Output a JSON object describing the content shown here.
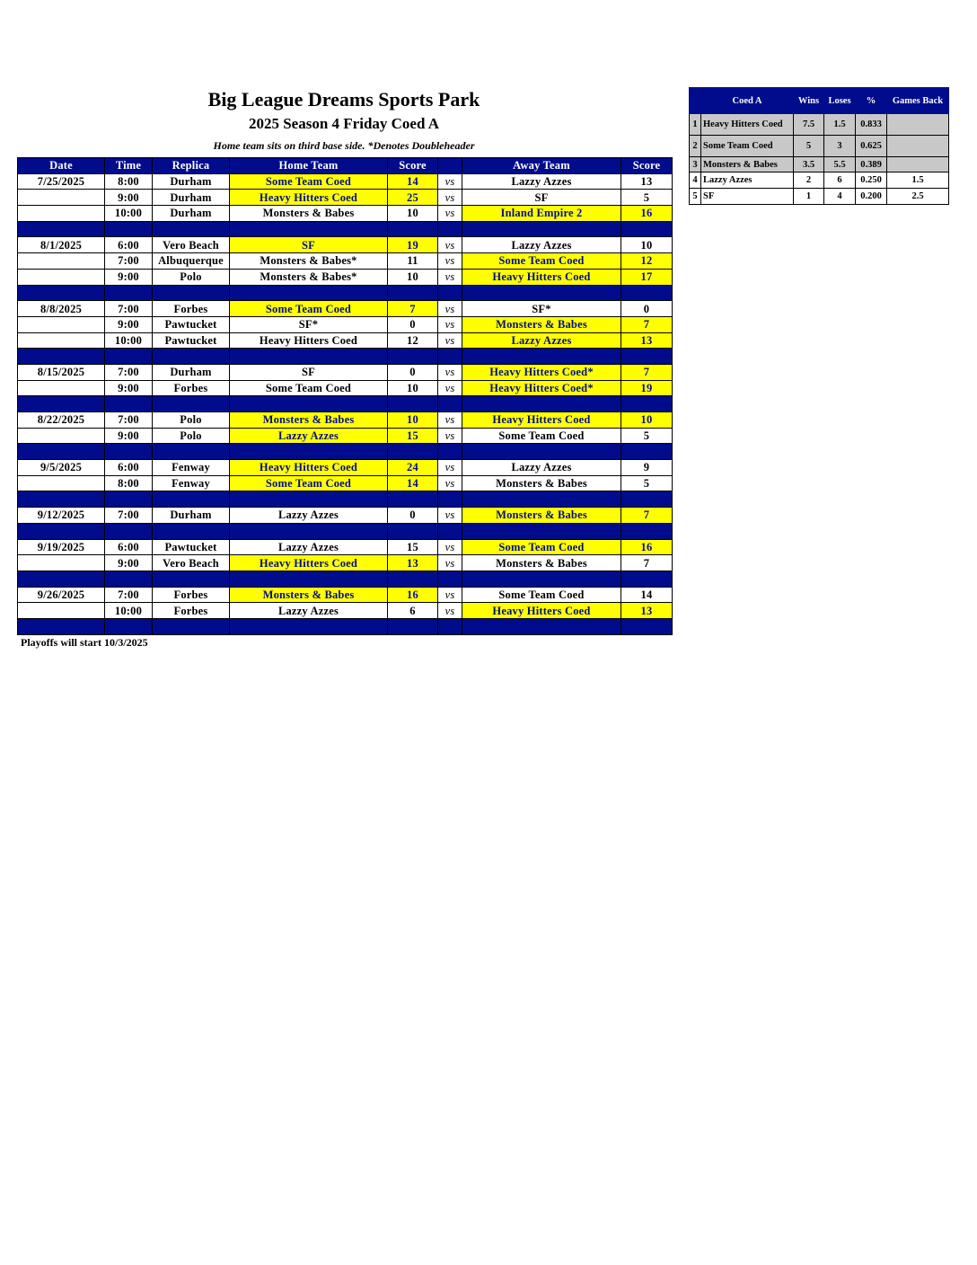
{
  "title": "Big League Dreams Sports Park",
  "subtitle": "2025 Season 4 Friday Coed A",
  "note": "Home team sits on third base side.  *Denotes Doubleheader",
  "footer": "Playoffs will start 10/3/2025",
  "colors": {
    "header": "#000c8c",
    "winner": "#ffff00",
    "top3": "#c8c8c8"
  },
  "schedule": {
    "headers": [
      "Date",
      "Time",
      "Replica",
      "Home Team",
      "Score",
      "",
      "Away Team",
      "Score"
    ],
    "rows": [
      {
        "date": "7/25/2025",
        "time": "8:00",
        "field": "Durham",
        "home": "Some Team Coed",
        "hs": "14",
        "vs": "vs",
        "away": "Lazzy Azzes",
        "as": "13",
        "winner": "home"
      },
      {
        "date": "",
        "time": "9:00",
        "field": "Durham",
        "home": "Heavy Hitters Coed",
        "hs": "25",
        "vs": "vs",
        "away": "SF",
        "as": "5",
        "winner": "home"
      },
      {
        "date": "",
        "time": "10:00",
        "field": "Durham",
        "home": "Monsters & Babes",
        "hs": "10",
        "vs": "vs",
        "away": "Inland Empire 2",
        "as": "16",
        "winner": "away"
      },
      {
        "spacer": true
      },
      {
        "date": "8/1/2025",
        "time": "6:00",
        "field": "Vero Beach",
        "home": "SF",
        "hs": "19",
        "vs": "vs",
        "away": "Lazzy Azzes",
        "as": "10",
        "winner": "home"
      },
      {
        "date": "",
        "time": "7:00",
        "field": "Albuquerque",
        "home": "Monsters & Babes*",
        "hs": "11",
        "vs": "vs",
        "away": "Some Team Coed",
        "as": "12",
        "winner": "away"
      },
      {
        "date": "",
        "time": "9:00",
        "field": "Polo",
        "home": "Monsters & Babes*",
        "hs": "10",
        "vs": "vs",
        "away": "Heavy Hitters Coed",
        "as": "17",
        "winner": "away"
      },
      {
        "spacer": true
      },
      {
        "date": "8/8/2025",
        "time": "7:00",
        "field": "Forbes",
        "home": "Some Team Coed",
        "hs": "7",
        "vs": "vs",
        "away": "SF*",
        "as": "0",
        "winner": "home"
      },
      {
        "date": "",
        "time": "9:00",
        "field": "Pawtucket",
        "home": "SF*",
        "hs": "0",
        "vs": "vs",
        "away": "Monsters & Babes",
        "as": "7",
        "winner": "away"
      },
      {
        "date": "",
        "time": "10:00",
        "field": "Pawtucket",
        "home": "Heavy Hitters Coed",
        "hs": "12",
        "vs": "vs",
        "away": "Lazzy Azzes",
        "as": "13",
        "winner": "away"
      },
      {
        "spacer": true
      },
      {
        "date": "8/15/2025",
        "time": "7:00",
        "field": "Durham",
        "home": "SF",
        "hs": "0",
        "vs": "vs",
        "away": "Heavy Hitters Coed*",
        "as": "7",
        "winner": "away"
      },
      {
        "date": "",
        "time": "9:00",
        "field": "Forbes",
        "home": "Some Team Coed",
        "hs": "10",
        "vs": "vs",
        "away": "Heavy Hitters Coed*",
        "as": "19",
        "winner": "away"
      },
      {
        "spacer": true
      },
      {
        "date": "8/22/2025",
        "time": "7:00",
        "field": "Polo",
        "home": "Monsters & Babes",
        "hs": "10",
        "vs": "vs",
        "away": "Heavy Hitters Coed",
        "as": "10",
        "winner": "both"
      },
      {
        "date": "",
        "time": "9:00",
        "field": "Polo",
        "home": "Lazzy Azzes",
        "hs": "15",
        "vs": "vs",
        "away": "Some Team Coed",
        "as": "5",
        "winner": "home"
      },
      {
        "spacer": true
      },
      {
        "date": "9/5/2025",
        "time": "6:00",
        "field": "Fenway",
        "home": "Heavy Hitters Coed",
        "hs": "24",
        "vs": "vs",
        "away": "Lazzy Azzes",
        "as": "9",
        "winner": "home"
      },
      {
        "date": "",
        "time": "8:00",
        "field": "Fenway",
        "home": "Some Team Coed",
        "hs": "14",
        "vs": "vs",
        "away": "Monsters & Babes",
        "as": "5",
        "winner": "home"
      },
      {
        "spacer": true
      },
      {
        "date": "9/12/2025",
        "time": "7:00",
        "field": "Durham",
        "home": "Lazzy Azzes",
        "hs": "0",
        "vs": "vs",
        "away": "Monsters & Babes",
        "as": "7",
        "winner": "away"
      },
      {
        "spacer": true
      },
      {
        "date": "9/19/2025",
        "time": "6:00",
        "field": "Pawtucket",
        "home": "Lazzy Azzes",
        "hs": "15",
        "vs": "vs",
        "away": "Some Team Coed",
        "as": "16",
        "winner": "away"
      },
      {
        "date": "",
        "time": "9:00",
        "field": "Vero Beach",
        "home": "Heavy Hitters Coed",
        "hs": "13",
        "vs": "vs",
        "away": "Monsters & Babes",
        "as": "7",
        "winner": "home"
      },
      {
        "spacer": true
      },
      {
        "date": "9/26/2025",
        "time": "7:00",
        "field": "Forbes",
        "home": "Monsters & Babes",
        "hs": "16",
        "vs": "vs",
        "away": "Some Team Coed",
        "as": "14",
        "winner": "home"
      },
      {
        "date": "",
        "time": "10:00",
        "field": "Forbes",
        "home": "Lazzy Azzes",
        "hs": "6",
        "vs": "vs",
        "away": "Heavy Hitters Coed",
        "as": "13",
        "winner": "away"
      },
      {
        "spacer": true
      }
    ]
  },
  "standings": {
    "headers": [
      "",
      "Coed A",
      "Wins",
      "Loses",
      "%",
      "Games Back"
    ],
    "rows": [
      {
        "rank": "1",
        "team": "Heavy Hitters Coed",
        "wins": "7.5",
        "loses": "1.5",
        "pct": "0.833",
        "gb": "",
        "top": true
      },
      {
        "rank": "2",
        "team": "Some Team Coed",
        "wins": "5",
        "loses": "3",
        "pct": "0.625",
        "gb": "",
        "top": true
      },
      {
        "rank": "3",
        "team": "Monsters & Babes",
        "wins": "3.5",
        "loses": "5.5",
        "pct": "0.389",
        "gb": "",
        "top": true
      },
      {
        "rank": "4",
        "team": "Lazzy Azzes",
        "wins": "2",
        "loses": "6",
        "pct": "0.250",
        "gb": "1.5",
        "top": false
      },
      {
        "rank": "5",
        "team": "SF",
        "wins": "1",
        "loses": "4",
        "pct": "0.200",
        "gb": "2.5",
        "top": false
      }
    ]
  }
}
